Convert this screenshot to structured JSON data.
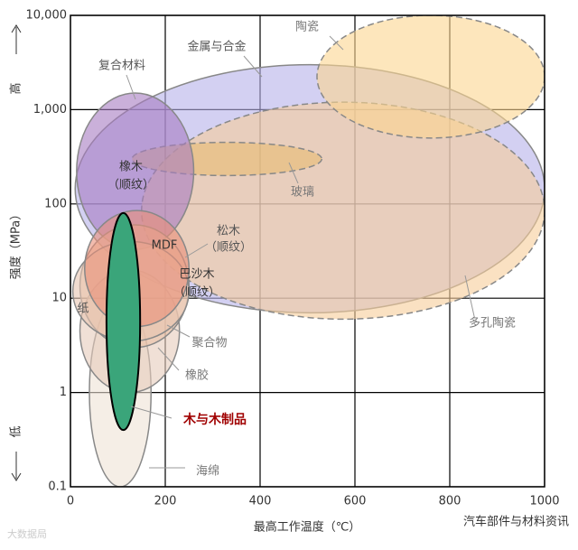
{
  "chart_data": {
    "type": "region",
    "x_label": "最高工作温度（℃）",
    "y_label": "强度（MPa）",
    "y_high": "高",
    "y_low": "低",
    "xlim": [
      0,
      1000
    ],
    "xticks": [
      0,
      200,
      400,
      600,
      800,
      1000
    ],
    "ylim": [
      0.1,
      10000
    ],
    "log_y": true,
    "grid": true,
    "yticks": [
      {
        "value": 0.1,
        "label": "0.1"
      },
      1,
      10,
      100,
      {
        "value": 1000,
        "label": "1,000"
      },
      {
        "value": 10000,
        "label": "10,000"
      }
    ],
    "regions": [
      {
        "label": [
          "金属与合金"
        ],
        "color": "#b5b0ea",
        "x": [
          10,
          1000
        ],
        "y": [
          7,
          3000
        ]
      },
      {
        "label": [
          "多孔陶瓷"
        ],
        "color": "#f6cd9a",
        "x": [
          150,
          1000
        ],
        "y": [
          6,
          1200
        ]
      },
      {
        "label": [
          "陶瓷"
        ],
        "color": "#fbd68f",
        "x": [
          520,
          1000
        ],
        "y": [
          500,
          10000
        ]
      },
      {
        "label": [
          "玻璃"
        ],
        "color": "#e8bd72",
        "x": [
          130,
          530
        ],
        "y": [
          200,
          450
        ]
      },
      {
        "label": [
          "复合材料"
        ],
        "color": "#a67cc2",
        "x": [
          13,
          260
        ],
        "y": [
          33,
          1500
        ]
      },
      {
        "label": [
          "海绵"
        ],
        "color": "#efe2d6",
        "x": [
          40,
          170
        ],
        "y": [
          0.1,
          10
        ]
      },
      {
        "label": [
          "橡胶"
        ],
        "color": "#e6cbbb",
        "x": [
          20,
          230
        ],
        "y": [
          1,
          20
        ]
      },
      {
        "label": [
          "聚合物"
        ],
        "color": "#eabfa5",
        "x": [
          20,
          250
        ],
        "y": [
          3,
          60
        ]
      },
      {
        "label": [
          "纸"
        ],
        "color": "#e8c4b0",
        "x": [
          5,
          250
        ],
        "y": [
          3.5,
          40
        ]
      },
      {
        "label": [
          "松木",
          "（顺纹）"
        ],
        "color": "#e98f78",
        "x": [
          30,
          250
        ],
        "y": [
          5,
          85
        ]
      },
      {
        "label": [
          "木与木制品"
        ],
        "color": "#3aa57a",
        "x": [
          76,
          147
        ],
        "y": [
          0.4,
          80
        ]
      }
    ],
    "annotations": [
      [
        "橡木",
        "（顺纹）"
      ],
      [
        "MDF"
      ],
      [
        "巴沙木",
        "（顺纹）"
      ]
    ],
    "watermarks": [
      "大数据局",
      "汽车部件与材料资讯"
    ]
  }
}
